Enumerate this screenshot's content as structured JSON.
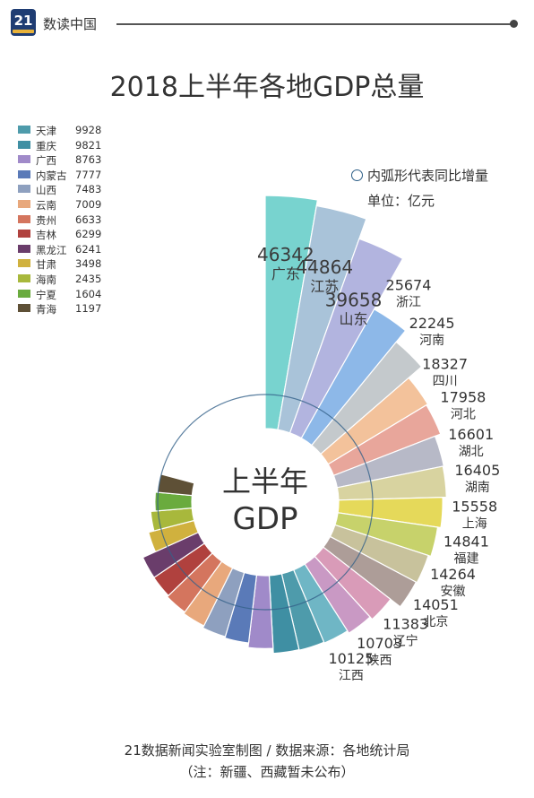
{
  "header": {
    "logo_text": "21",
    "brand": "数读中国"
  },
  "title": "2018上半年各地GDP总量",
  "note": {
    "inner_arc": "内弧形代表同比增量",
    "unit": "单位：亿元"
  },
  "center_label": {
    "line1": "上半年",
    "line2": "GDP"
  },
  "footer": {
    "line1": "21数据新闻实验室制图 / 数据来源：各地统计局",
    "line2": "（注：新疆、西藏暂未公布）"
  },
  "chart_data": {
    "type": "bar",
    "layout": "radial",
    "unit": "亿元",
    "labeled": [
      {
        "name": "广东",
        "value": 46342,
        "color": "#78d3cf"
      },
      {
        "name": "江苏",
        "value": 44864,
        "color": "#a9c3d9"
      },
      {
        "name": "山东",
        "value": 39658,
        "color": "#b2b4df"
      },
      {
        "name": "浙江",
        "value": 25674,
        "color": "#8db8e8"
      },
      {
        "name": "河南",
        "value": 22245,
        "color": "#c4c9cc"
      },
      {
        "name": "四川",
        "value": 18327,
        "color": "#f3c29b"
      },
      {
        "name": "河北",
        "value": 17958,
        "color": "#e8a69b"
      },
      {
        "name": "湖北",
        "value": 16601,
        "color": "#b7b9c7"
      },
      {
        "name": "湖南",
        "value": 16405,
        "color": "#d8d3a0"
      },
      {
        "name": "上海",
        "value": 15558,
        "color": "#e5d95a"
      },
      {
        "name": "福建",
        "value": 14841,
        "color": "#c7d26b"
      },
      {
        "name": "安徽",
        "value": 14264,
        "color": "#c8c29c"
      },
      {
        "name": "北京",
        "value": 14051,
        "color": "#ad9d98"
      },
      {
        "name": "辽宁",
        "value": 11383,
        "color": "#d99bb8"
      },
      {
        "name": "陕西",
        "value": 10703,
        "color": "#c999c4"
      },
      {
        "name": "江西",
        "value": 10125,
        "color": "#6fb6c5"
      }
    ],
    "legend": [
      {
        "name": "天津",
        "value": 9928,
        "color": "#4e9bab"
      },
      {
        "name": "重庆",
        "value": 9821,
        "color": "#3f8fa3"
      },
      {
        "name": "广西",
        "value": 8763,
        "color": "#a08ac9"
      },
      {
        "name": "内蒙古",
        "value": 7777,
        "color": "#5a7ab8"
      },
      {
        "name": "山西",
        "value": 7483,
        "color": "#8ea0bf"
      },
      {
        "name": "云南",
        "value": 7009,
        "color": "#e8a87c"
      },
      {
        "name": "贵州",
        "value": 6633,
        "color": "#d4755e"
      },
      {
        "name": "吉林",
        "value": 6299,
        "color": "#b0413e"
      },
      {
        "name": "黑龙江",
        "value": 6241,
        "color": "#6a3d6b"
      },
      {
        "name": "甘肃",
        "value": 3498,
        "color": "#d0b13e"
      },
      {
        "name": "海南",
        "value": 2435,
        "color": "#a8b83c"
      },
      {
        "name": "宁夏",
        "value": 1604,
        "color": "#6aab3e"
      },
      {
        "name": "青海",
        "value": 1197,
        "color": "#5e5036"
      }
    ]
  }
}
